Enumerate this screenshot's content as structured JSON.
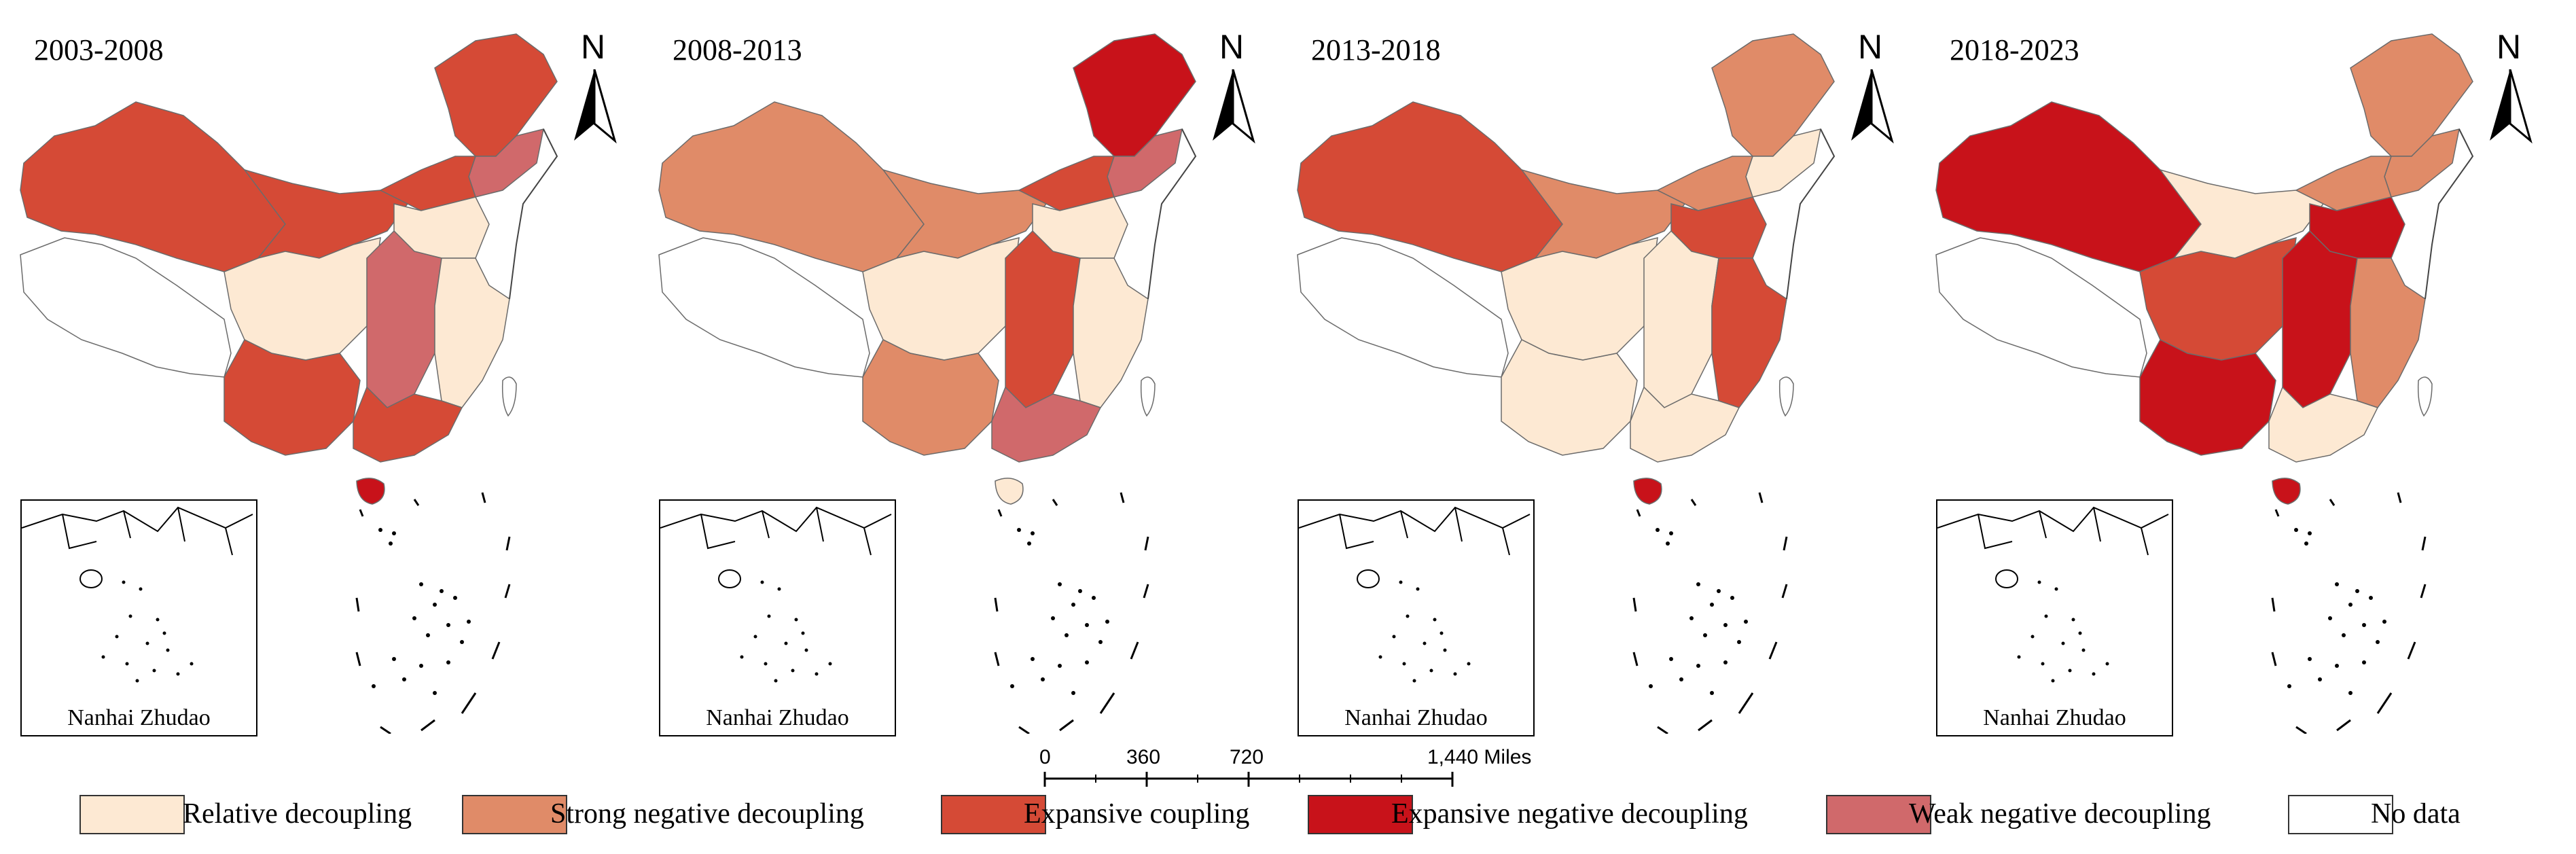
{
  "colors": {
    "relative_decoupling": "#FDE9D3",
    "strong_negative_decoupling": "#E08B68",
    "expansive_coupling": "#D54A36",
    "expansive_negative_decoupling": "#C8121A",
    "weak_negative_decoupling": "#D0696B",
    "no_data": "#FFFFFF"
  },
  "panels": [
    {
      "title": "2003-2008",
      "north": "N",
      "inset_label": "Nanhai Zhudao",
      "fills": {
        "west": "no_data",
        "xinjiang": "expansive_coupling",
        "gansu": "expansive_coupling",
        "northeast": "expansive_coupling",
        "northeast_south": "weak_negative_decoupling",
        "north": "expansive_coupling",
        "north_china_plain": "relative_decoupling",
        "qinghai_sichuan": "relative_decoupling",
        "central": "weak_negative_decoupling",
        "east": "relative_decoupling",
        "southwest": "expansive_coupling",
        "south": "expansive_coupling",
        "hainan": "expansive_negative_decoupling",
        "taiwan": "no_data"
      }
    },
    {
      "title": "2008-2013",
      "north": "N",
      "inset_label": "Nanhai Zhudao",
      "fills": {
        "west": "no_data",
        "xinjiang": "strong_negative_decoupling",
        "gansu": "strong_negative_decoupling",
        "northeast": "expansive_negative_decoupling",
        "northeast_south": "weak_negative_decoupling",
        "north": "expansive_coupling",
        "north_china_plain": "relative_decoupling",
        "qinghai_sichuan": "relative_decoupling",
        "central": "expansive_coupling",
        "east": "relative_decoupling",
        "southwest": "strong_negative_decoupling",
        "south": "weak_negative_decoupling",
        "hainan": "relative_decoupling",
        "taiwan": "no_data"
      }
    },
    {
      "title": "2013-2018",
      "north": "N",
      "inset_label": "Nanhai Zhudao",
      "fills": {
        "west": "no_data",
        "xinjiang": "expansive_coupling",
        "gansu": "strong_negative_decoupling",
        "northeast": "strong_negative_decoupling",
        "northeast_south": "relative_decoupling",
        "north": "strong_negative_decoupling",
        "north_china_plain": "expansive_coupling",
        "qinghai_sichuan": "relative_decoupling",
        "central": "relative_decoupling",
        "east": "expansive_coupling",
        "southwest": "relative_decoupling",
        "south": "relative_decoupling",
        "hainan": "expansive_negative_decoupling",
        "taiwan": "no_data"
      }
    },
    {
      "title": "2018-2023",
      "north": "N",
      "inset_label": "Nanhai Zhudao",
      "fills": {
        "west": "no_data",
        "xinjiang": "expansive_negative_decoupling",
        "gansu": "relative_decoupling",
        "northeast": "strong_negative_decoupling",
        "northeast_south": "strong_negative_decoupling",
        "north": "strong_negative_decoupling",
        "north_china_plain": "expansive_negative_decoupling",
        "qinghai_sichuan": "expansive_coupling",
        "central": "expansive_negative_decoupling",
        "east": "strong_negative_decoupling",
        "southwest": "expansive_negative_decoupling",
        "south": "relative_decoupling",
        "hainan": "expansive_negative_decoupling",
        "taiwan": "no_data"
      }
    }
  ],
  "scale_bar": {
    "labels": [
      "0",
      "360",
      "720",
      "1,440 Miles"
    ],
    "values_miles": [
      0,
      360,
      720,
      1440
    ]
  },
  "legend": [
    {
      "label": "Relative decoupling",
      "color_key": "relative_decoupling"
    },
    {
      "label": "Strong negative decoupling",
      "color_key": "strong_negative_decoupling"
    },
    {
      "label": "Expansive coupling",
      "color_key": "expansive_coupling"
    },
    {
      "label": "Expansive negative decoupling",
      "color_key": "expansive_negative_decoupling"
    },
    {
      "label": "Weak negative decoupling",
      "color_key": "weak_negative_decoupling"
    },
    {
      "label": "No data",
      "color_key": "no_data"
    }
  ]
}
